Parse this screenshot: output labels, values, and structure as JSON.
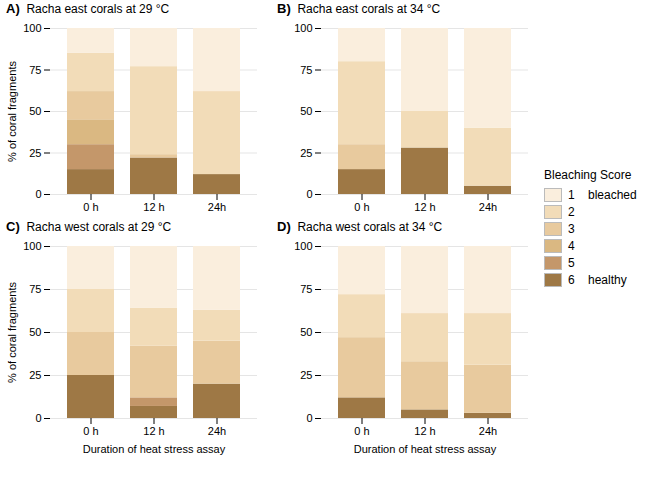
{
  "chart_data": [
    {
      "type": "bar",
      "stacked": true,
      "title": "Racha east corals at 29 °C",
      "annotations": [
        "A)"
      ],
      "ylabel": "% of coral fragments",
      "categories": [
        "0 h",
        "12 h",
        "24h"
      ],
      "ylim": [
        0,
        100
      ],
      "yticks": [
        0,
        25,
        50,
        75,
        100
      ],
      "grid": true,
      "legend": "right",
      "legend_title": "Bleaching Score",
      "series": [
        {
          "name": "1    bleached",
          "color": "#faeedd",
          "values": [
            15,
            23,
            38
          ]
        },
        {
          "name": "2",
          "color": "#f2dcb8",
          "values": [
            23,
            53,
            50
          ]
        },
        {
          "name": "3",
          "color": "#e8ca9e",
          "values": [
            17,
            2,
            0
          ]
        },
        {
          "name": "4",
          "color": "#dab882",
          "values": [
            15,
            0,
            0
          ]
        },
        {
          "name": "5",
          "color": "#c4976a",
          "values": [
            15,
            0,
            0
          ]
        },
        {
          "name": "6    healthy",
          "color": "#9e7845",
          "values": [
            15,
            22,
            12
          ]
        }
      ]
    },
    {
      "type": "bar",
      "stacked": true,
      "title": "Racha east corals at 34 °C",
      "annotations": [
        "B)"
      ],
      "categories": [
        "0 h",
        "12 h",
        "24h"
      ],
      "ylim": [
        0,
        100
      ],
      "yticks": [
        0,
        25,
        50,
        75,
        100
      ],
      "grid": true,
      "series": [
        {
          "name": "1    bleached",
          "color": "#faeedd",
          "values": [
            20,
            50,
            60
          ]
        },
        {
          "name": "2",
          "color": "#f2dcb8",
          "values": [
            50,
            22,
            35
          ]
        },
        {
          "name": "3",
          "color": "#e8ca9e",
          "values": [
            15,
            0,
            0
          ]
        },
        {
          "name": "4",
          "color": "#dab882",
          "values": [
            0,
            0,
            0
          ]
        },
        {
          "name": "5",
          "color": "#c4976a",
          "values": [
            0,
            0,
            0
          ]
        },
        {
          "name": "6    healthy",
          "color": "#9e7845",
          "values": [
            15,
            28,
            5
          ]
        }
      ]
    },
    {
      "type": "bar",
      "stacked": true,
      "title": "Racha west corals at 29 °C",
      "annotations": [
        "C)"
      ],
      "ylabel": "% of coral fragments",
      "xlabel": "Duration of heat stress assay",
      "categories": [
        "0 h",
        "12 h",
        "24h"
      ],
      "ylim": [
        0,
        100
      ],
      "yticks": [
        0,
        25,
        50,
        75,
        100
      ],
      "grid": true,
      "series": [
        {
          "name": "1    bleached",
          "color": "#faeedd",
          "values": [
            25,
            36,
            37
          ]
        },
        {
          "name": "2",
          "color": "#f2dcb8",
          "values": [
            25,
            22,
            18
          ]
        },
        {
          "name": "3",
          "color": "#e8ca9e",
          "values": [
            25,
            30,
            25
          ]
        },
        {
          "name": "4",
          "color": "#dab882",
          "values": [
            0,
            0,
            0
          ]
        },
        {
          "name": "5",
          "color": "#c4976a",
          "values": [
            0,
            5,
            0
          ]
        },
        {
          "name": "6    healthy",
          "color": "#9e7845",
          "values": [
            25,
            7,
            20
          ]
        }
      ]
    },
    {
      "type": "bar",
      "stacked": true,
      "title": "Racha west corals at 34 °C",
      "annotations": [
        "D)"
      ],
      "xlabel": "Duration of heat stress assay",
      "categories": [
        "0 h",
        "12 h",
        "24h"
      ],
      "ylim": [
        0,
        100
      ],
      "yticks": [
        0,
        25,
        50,
        75,
        100
      ],
      "grid": true,
      "series": [
        {
          "name": "1    bleached",
          "color": "#faeedd",
          "values": [
            28,
            39,
            39
          ]
        },
        {
          "name": "2",
          "color": "#f2dcb8",
          "values": [
            25,
            28,
            30
          ]
        },
        {
          "name": "3",
          "color": "#e8ca9e",
          "values": [
            35,
            28,
            28
          ]
        },
        {
          "name": "4",
          "color": "#dab882",
          "values": [
            0,
            0,
            0
          ]
        },
        {
          "name": "5",
          "color": "#c4976a",
          "values": [
            0,
            0,
            0
          ]
        },
        {
          "name": "6    healthy",
          "color": "#9e7845",
          "values": [
            12,
            5,
            3
          ]
        }
      ]
    }
  ]
}
